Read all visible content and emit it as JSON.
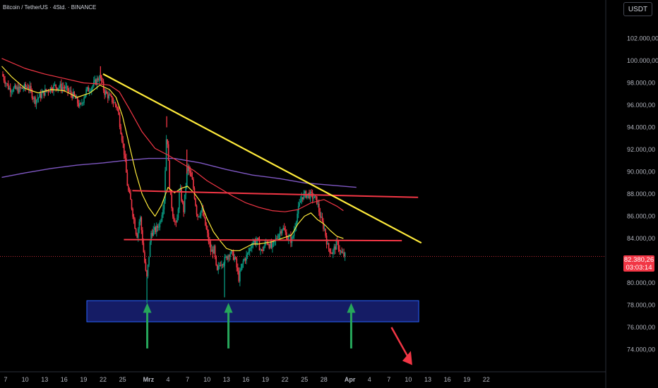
{
  "header": {
    "symbol": "Bitcoin / TetherUS · 4Std. · BINANCE"
  },
  "currency_button": "USDT",
  "last_price": {
    "value": "82.380,26",
    "countdown": "03:03:14"
  },
  "colors": {
    "up": "#089981",
    "down": "#f23645",
    "yellow": "#ffeb3b",
    "red": "#f23645",
    "purple": "#7e57c2",
    "zone_fill": "#1a237e",
    "zone_border": "#2962ff",
    "arrow_green": "#26a65b",
    "arrow_red": "#f23645"
  },
  "chart_data": {
    "type": "candlestick",
    "y_axis": {
      "range": [
        72500,
        104500
      ],
      "ticks": [
        {
          "value": 102000,
          "label": "102.000,00"
        },
        {
          "value": 100000,
          "label": "100.000,00"
        },
        {
          "value": 98000,
          "label": "98.000,00"
        },
        {
          "value": 96000,
          "label": "96.000,00"
        },
        {
          "value": 94000,
          "label": "94.000,00"
        },
        {
          "value": 92000,
          "label": "92.000,00"
        },
        {
          "value": 90000,
          "label": "90.000,00"
        },
        {
          "value": 88000,
          "label": "88.000,00"
        },
        {
          "value": 86000,
          "label": "86.000,00"
        },
        {
          "value": 84000,
          "label": "84.000,00"
        },
        {
          "value": 80000,
          "label": "80.000,00"
        },
        {
          "value": 78000,
          "label": "78.000,00"
        },
        {
          "value": 76000,
          "label": "76.000,00"
        },
        {
          "value": 74000,
          "label": "74.000,00"
        }
      ]
    },
    "x_axis": {
      "ticks": [
        {
          "day": 0,
          "label": "7"
        },
        {
          "day": 3,
          "label": "10"
        },
        {
          "day": 6,
          "label": "13"
        },
        {
          "day": 9,
          "label": "16"
        },
        {
          "day": 12,
          "label": "19"
        },
        {
          "day": 15,
          "label": "22"
        },
        {
          "day": 18,
          "label": "25"
        },
        {
          "day": 22,
          "label": "Mrz"
        },
        {
          "day": 25,
          "label": "4"
        },
        {
          "day": 28,
          "label": "7"
        },
        {
          "day": 31,
          "label": "10"
        },
        {
          "day": 34,
          "label": "13"
        },
        {
          "day": 37,
          "label": "16"
        },
        {
          "day": 40,
          "label": "19"
        },
        {
          "day": 43,
          "label": "22"
        },
        {
          "day": 46,
          "label": "25"
        },
        {
          "day": 49,
          "label": "28"
        },
        {
          "day": 53,
          "label": "Apr"
        },
        {
          "day": 56,
          "label": "4"
        },
        {
          "day": 59,
          "label": "7"
        },
        {
          "day": 62,
          "label": "10"
        },
        {
          "day": 65,
          "label": "13"
        },
        {
          "day": 68,
          "label": "16"
        },
        {
          "day": 71,
          "label": "19"
        },
        {
          "day": 74,
          "label": "22"
        }
      ]
    },
    "price_path": [
      [
        -0.6,
        98800
      ],
      [
        0.5,
        97500
      ],
      [
        2,
        97400
      ],
      [
        3.5,
        97700
      ],
      [
        4.5,
        96400
      ],
      [
        6,
        97200
      ],
      [
        7.5,
        97700
      ],
      [
        9,
        97600
      ],
      [
        10.5,
        96800
      ],
      [
        11.5,
        95800
      ],
      [
        12.3,
        97200
      ],
      [
        13.5,
        97800
      ],
      [
        14.5,
        98600
      ],
      [
        15.2,
        97200
      ],
      [
        16.3,
        96500
      ],
      [
        17.2,
        95800
      ],
      [
        17.8,
        93500
      ],
      [
        18.3,
        91500
      ],
      [
        18.8,
        88500
      ],
      [
        19.3,
        87200
      ],
      [
        19.8,
        85500
      ],
      [
        20.2,
        84200
      ],
      [
        20.7,
        86000
      ],
      [
        21.2,
        83000
      ],
      [
        21.7,
        80200
      ],
      [
        22.4,
        84500
      ],
      [
        23.2,
        84800
      ],
      [
        23.8,
        85500
      ],
      [
        24.4,
        87500
      ],
      [
        24.8,
        94000
      ],
      [
        25.3,
        88000
      ],
      [
        25.8,
        86000
      ],
      [
        26.3,
        85000
      ],
      [
        26.8,
        88500
      ],
      [
        27.4,
        86500
      ],
      [
        28,
        90500
      ],
      [
        28.8,
        89000
      ],
      [
        29.5,
        86000
      ],
      [
        30.2,
        86600
      ],
      [
        31,
        84500
      ],
      [
        31.6,
        82800
      ],
      [
        32.1,
        83000
      ],
      [
        32.5,
        80800
      ],
      [
        33,
        81800
      ],
      [
        33.8,
        82100
      ],
      [
        34.5,
        82800
      ],
      [
        35.3,
        82200
      ],
      [
        35.9,
        80400
      ],
      [
        36.6,
        82000
      ],
      [
        37.2,
        82500
      ],
      [
        38,
        83700
      ],
      [
        38.7,
        83800
      ],
      [
        39.4,
        82800
      ],
      [
        40.2,
        83800
      ],
      [
        41,
        83100
      ],
      [
        41.8,
        84200
      ],
      [
        42.6,
        85000
      ],
      [
        43.4,
        84100
      ],
      [
        44.1,
        83800
      ],
      [
        44.8,
        86000
      ],
      [
        45.6,
        87800
      ],
      [
        46.4,
        88000
      ],
      [
        47.2,
        87800
      ],
      [
        47.9,
        87400
      ],
      [
        48.5,
        85800
      ],
      [
        49.1,
        84800
      ],
      [
        49.6,
        83200
      ],
      [
        50.3,
        82700
      ],
      [
        51,
        83600
      ],
      [
        51.7,
        82600
      ],
      [
        52.4,
        82380
      ]
    ],
    "spikes": [
      {
        "day": 21.75,
        "low": 78200
      },
      {
        "day": 33.7,
        "low": 78700
      },
      {
        "day": 24.8,
        "high": 95000
      },
      {
        "day": 14.6,
        "high": 99500
      },
      {
        "day": 27.9,
        "high": 92000
      }
    ],
    "ema_fast_yellow": [
      [
        -0.6,
        99500
      ],
      [
        1,
        98500
      ],
      [
        3,
        97500
      ],
      [
        5,
        97100
      ],
      [
        7,
        97400
      ],
      [
        9,
        97300
      ],
      [
        11,
        96700
      ],
      [
        13,
        97100
      ],
      [
        14.5,
        97800
      ],
      [
        16,
        97400
      ],
      [
        17,
        96700
      ],
      [
        18,
        95000
      ],
      [
        19,
        92500
      ],
      [
        20,
        90000
      ],
      [
        21,
        88000
      ],
      [
        22,
        86800
      ],
      [
        23,
        86000
      ],
      [
        24,
        87000
      ],
      [
        25,
        88600
      ],
      [
        26,
        88100
      ],
      [
        27,
        88500
      ],
      [
        28,
        88700
      ],
      [
        29,
        88100
      ],
      [
        30,
        87300
      ],
      [
        31,
        85800
      ],
      [
        32,
        84600
      ],
      [
        33,
        83800
      ],
      [
        34,
        83100
      ],
      [
        35,
        82900
      ],
      [
        36,
        82900
      ],
      [
        37,
        83200
      ],
      [
        38,
        83500
      ],
      [
        39,
        83500
      ],
      [
        40,
        83600
      ],
      [
        41,
        83700
      ],
      [
        42,
        83900
      ],
      [
        43,
        84100
      ],
      [
        44,
        84300
      ],
      [
        45,
        85300
      ],
      [
        46,
        86000
      ],
      [
        47,
        86300
      ],
      [
        48,
        85700
      ],
      [
        49,
        85300
      ],
      [
        50,
        84700
      ],
      [
        51,
        84200
      ],
      [
        52,
        84000
      ]
    ],
    "ema_mid_red": [
      [
        -0.6,
        100200
      ],
      [
        3,
        99300
      ],
      [
        6,
        98800
      ],
      [
        9,
        98400
      ],
      [
        12,
        98000
      ],
      [
        14.5,
        97900
      ],
      [
        16,
        97800
      ],
      [
        17.5,
        97200
      ],
      [
        19,
        95700
      ],
      [
        21,
        93600
      ],
      [
        23,
        92100
      ],
      [
        25,
        91500
      ],
      [
        27,
        90800
      ],
      [
        29,
        90100
      ],
      [
        31,
        89200
      ],
      [
        33,
        88500
      ],
      [
        35,
        87800
      ],
      [
        37,
        87200
      ],
      [
        39,
        86800
      ],
      [
        41,
        86500
      ],
      [
        43,
        86400
      ],
      [
        45,
        86600
      ],
      [
        47,
        87200
      ],
      [
        49,
        87500
      ],
      [
        51,
        86900
      ],
      [
        52,
        86500
      ]
    ],
    "ma_slow_purple": [
      [
        -0.6,
        89500
      ],
      [
        3,
        89900
      ],
      [
        7,
        90300
      ],
      [
        11,
        90600
      ],
      [
        15,
        90800
      ],
      [
        18,
        91000
      ],
      [
        22,
        91200
      ],
      [
        26,
        91200
      ],
      [
        30,
        90800
      ],
      [
        34,
        90200
      ],
      [
        38,
        89700
      ],
      [
        42,
        89400
      ],
      [
        46,
        89000
      ],
      [
        50,
        88800
      ],
      [
        54,
        88600
      ]
    ],
    "drawings": {
      "trendline_yellow": {
        "from": [
          15,
          98800
        ],
        "to": [
          64,
          83600
        ]
      },
      "resistance_red": {
        "from": [
          19.5,
          88300
        ],
        "to": [
          63.5,
          87700
        ]
      },
      "support_red": {
        "from": [
          18.2,
          83900
        ],
        "to": [
          61,
          83800
        ]
      },
      "demand_zone": {
        "day_from": 12.5,
        "day_to": 63.6,
        "price_top": 78400,
        "price_bottom": 76500
      },
      "up_arrows": [
        21.8,
        34.3,
        53.2
      ],
      "down_arrow": {
        "from": [
          59.4,
          76000
        ],
        "to": [
          62.6,
          72600
        ]
      }
    },
    "last_price_line": 82380
  }
}
